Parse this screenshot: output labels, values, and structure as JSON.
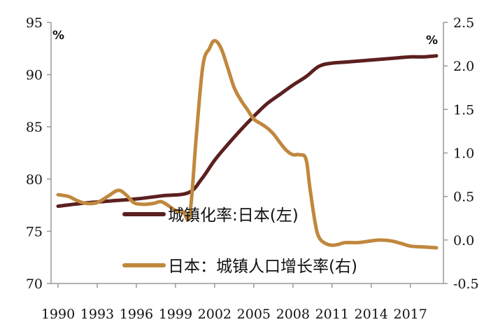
{
  "chart_data": {
    "type": "line",
    "x_ticks": [
      "1990",
      "1993",
      "1996",
      "1999",
      "2002",
      "2005",
      "2008",
      "2011",
      "2014",
      "2017"
    ],
    "xlim": [
      1990,
      2019
    ],
    "left_axis": {
      "unit": "%",
      "ylim": [
        70,
        95
      ],
      "ticks": [
        "70",
        "75",
        "80",
        "85",
        "90",
        "95"
      ]
    },
    "right_axis": {
      "unit": "%",
      "ylim": [
        -0.5,
        2.5
      ],
      "ticks": [
        "-0.5",
        "0.0",
        "0.5",
        "1.0",
        "1.5",
        "2.0",
        "2.5"
      ]
    },
    "series": [
      {
        "name": "城镇化率:日本(左)",
        "axis": "left",
        "color": "#5c1f1f",
        "points": [
          [
            1990,
            77.4
          ],
          [
            1992,
            77.7
          ],
          [
            1994,
            77.9
          ],
          [
            1996,
            78.1
          ],
          [
            1998,
            78.4
          ],
          [
            2000,
            78.7
          ],
          [
            2001,
            80.0
          ],
          [
            2002,
            81.8
          ],
          [
            2003,
            83.3
          ],
          [
            2004,
            84.7
          ],
          [
            2005,
            86.0
          ],
          [
            2006,
            87.2
          ],
          [
            2007,
            88.1
          ],
          [
            2008,
            89.0
          ],
          [
            2009,
            89.8
          ],
          [
            2010,
            90.8
          ],
          [
            2011,
            91.1
          ],
          [
            2012,
            91.2
          ],
          [
            2013,
            91.3
          ],
          [
            2014,
            91.4
          ],
          [
            2015,
            91.5
          ],
          [
            2016,
            91.6
          ],
          [
            2017,
            91.7
          ],
          [
            2018,
            91.7
          ],
          [
            2019,
            91.8
          ]
        ]
      },
      {
        "name": "日本：城镇人口增长率(右)",
        "axis": "right",
        "color": "#c0883e",
        "points": [
          [
            1990,
            0.52
          ],
          [
            1990.8,
            0.5
          ],
          [
            1991.5,
            0.45
          ],
          [
            1992.2,
            0.42
          ],
          [
            1993,
            0.43
          ],
          [
            1993.8,
            0.5
          ],
          [
            1994.6,
            0.57
          ],
          [
            1995.2,
            0.52
          ],
          [
            1995.8,
            0.43
          ],
          [
            1996.5,
            0.41
          ],
          [
            1997.3,
            0.42
          ],
          [
            1997.9,
            0.44
          ],
          [
            1998.5,
            0.39
          ],
          [
            1999,
            0.34
          ],
          [
            1999.6,
            0.32
          ],
          [
            2000.1,
            0.3
          ],
          [
            2000.6,
            1.2
          ],
          [
            2001.1,
            2.0
          ],
          [
            2001.6,
            2.2
          ],
          [
            2002,
            2.29
          ],
          [
            2002.5,
            2.2
          ],
          [
            2003,
            1.98
          ],
          [
            2003.5,
            1.75
          ],
          [
            2004,
            1.61
          ],
          [
            2004.5,
            1.5
          ],
          [
            2005,
            1.39
          ],
          [
            2005.5,
            1.34
          ],
          [
            2006,
            1.29
          ],
          [
            2006.5,
            1.22
          ],
          [
            2007,
            1.12
          ],
          [
            2007.5,
            1.03
          ],
          [
            2008,
            0.98
          ],
          [
            2008.5,
            0.98
          ],
          [
            2009,
            0.93
          ],
          [
            2009.3,
            0.6
          ],
          [
            2009.7,
            0.2
          ],
          [
            2010,
            0.03
          ],
          [
            2010.5,
            -0.04
          ],
          [
            2011,
            -0.06
          ],
          [
            2011.5,
            -0.05
          ],
          [
            2012,
            -0.03
          ],
          [
            2013,
            -0.03
          ],
          [
            2014,
            -0.01
          ],
          [
            2014.7,
            0.0
          ],
          [
            2015.5,
            -0.01
          ],
          [
            2016.3,
            -0.04
          ],
          [
            2017,
            -0.07
          ],
          [
            2018,
            -0.08
          ],
          [
            2019,
            -0.09
          ]
        ]
      }
    ]
  }
}
